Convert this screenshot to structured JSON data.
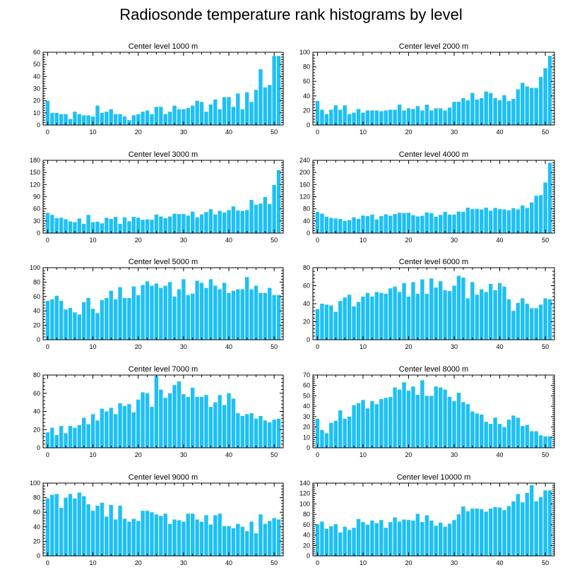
{
  "title": "Radiosonde temperature rank histograms by level",
  "colors": {
    "bar": "#1EC0F5",
    "bar_edge": "#ffffff",
    "axis": "#000000"
  },
  "chart_data": [
    {
      "type": "bar",
      "title": "Center level 1000 m",
      "xlim": [
        -1,
        52
      ],
      "ylim": [
        0,
        60
      ],
      "xticks": [
        0,
        10,
        20,
        30,
        40,
        50
      ],
      "yticks": [
        0,
        10,
        20,
        30,
        40,
        50,
        60
      ],
      "values": [
        20,
        10,
        10,
        9,
        9,
        5,
        11,
        9,
        8,
        8,
        7,
        16,
        10,
        11,
        13,
        9,
        9,
        7,
        4,
        8,
        9,
        11,
        12,
        9,
        15,
        15,
        9,
        11,
        16,
        13,
        13,
        14,
        16,
        20,
        19,
        11,
        17,
        21,
        13,
        23,
        23,
        15,
        26,
        13,
        27,
        19,
        29,
        46,
        31,
        33,
        57,
        57
      ]
    },
    {
      "type": "bar",
      "title": "Center level 2000 m",
      "xlim": [
        -1,
        52
      ],
      "ylim": [
        0,
        100
      ],
      "xticks": [
        0,
        10,
        20,
        30,
        40,
        50
      ],
      "yticks": [
        0,
        20,
        40,
        60,
        80,
        100
      ],
      "values": [
        33,
        21,
        15,
        21,
        27,
        21,
        27,
        15,
        17,
        22,
        17,
        20,
        20,
        20,
        19,
        20,
        21,
        21,
        28,
        20,
        23,
        22,
        26,
        20,
        28,
        20,
        23,
        23,
        20,
        24,
        32,
        32,
        37,
        34,
        44,
        35,
        37,
        46,
        44,
        37,
        34,
        41,
        33,
        36,
        49,
        58,
        53,
        51,
        51,
        66,
        78,
        95
      ]
    },
    {
      "type": "bar",
      "title": "Center level 3000 m",
      "xlim": [
        -1,
        52
      ],
      "ylim": [
        0,
        180
      ],
      "xticks": [
        0,
        10,
        20,
        30,
        40,
        50
      ],
      "yticks": [
        0,
        30,
        60,
        90,
        120,
        150,
        180
      ],
      "values": [
        50,
        45,
        37,
        38,
        34,
        29,
        27,
        36,
        23,
        45,
        27,
        28,
        24,
        38,
        35,
        40,
        23,
        39,
        29,
        40,
        38,
        33,
        34,
        33,
        46,
        41,
        37,
        41,
        48,
        47,
        47,
        43,
        53,
        39,
        46,
        52,
        59,
        46,
        55,
        51,
        57,
        66,
        56,
        55,
        57,
        82,
        70,
        73,
        89,
        72,
        119,
        156
      ]
    },
    {
      "type": "bar",
      "title": "Center level 4000 m",
      "xlim": [
        -1,
        52
      ],
      "ylim": [
        0,
        240
      ],
      "xticks": [
        0,
        10,
        20,
        30,
        40,
        50
      ],
      "yticks": [
        0,
        40,
        80,
        120,
        160,
        200,
        240
      ],
      "values": [
        70,
        64,
        54,
        50,
        48,
        47,
        40,
        43,
        52,
        47,
        58,
        56,
        61,
        45,
        56,
        62,
        57,
        63,
        67,
        66,
        67,
        59,
        55,
        57,
        68,
        66,
        54,
        60,
        70,
        61,
        61,
        71,
        70,
        84,
        79,
        80,
        78,
        84,
        74,
        83,
        79,
        78,
        75,
        82,
        78,
        91,
        83,
        101,
        123,
        125,
        167,
        232
      ]
    },
    {
      "type": "bar",
      "title": "Center level 5000 m",
      "xlim": [
        -1,
        52
      ],
      "ylim": [
        0,
        100
      ],
      "xticks": [
        0,
        10,
        20,
        30,
        40,
        50
      ],
      "yticks": [
        0,
        20,
        40,
        60,
        80,
        100
      ],
      "values": [
        54,
        56,
        61,
        54,
        42,
        44,
        38,
        35,
        52,
        58,
        43,
        37,
        55,
        58,
        68,
        56,
        73,
        58,
        58,
        74,
        62,
        76,
        81,
        75,
        78,
        72,
        75,
        80,
        60,
        70,
        84,
        62,
        64,
        82,
        79,
        72,
        84,
        75,
        70,
        79,
        65,
        68,
        70,
        70,
        87,
        70,
        75,
        65,
        65,
        72,
        62,
        62
      ]
    },
    {
      "type": "bar",
      "title": "Center level 6000 m",
      "xlim": [
        -1,
        52
      ],
      "ylim": [
        0,
        80
      ],
      "xticks": [
        0,
        10,
        20,
        30,
        40,
        50
      ],
      "yticks": [
        0,
        20,
        40,
        60,
        80
      ],
      "values": [
        34,
        40,
        39,
        38,
        31,
        43,
        47,
        50,
        37,
        42,
        48,
        52,
        48,
        53,
        52,
        51,
        57,
        59,
        53,
        63,
        48,
        64,
        51,
        67,
        51,
        68,
        58,
        65,
        55,
        54,
        60,
        71,
        69,
        46,
        64,
        50,
        56,
        53,
        62,
        55,
        63,
        59,
        45,
        32,
        41,
        46,
        40,
        35,
        35,
        39,
        46,
        45
      ]
    },
    {
      "type": "bar",
      "title": "Center level 7000 m",
      "xlim": [
        -1,
        52
      ],
      "ylim": [
        0,
        80
      ],
      "xticks": [
        0,
        10,
        20,
        30,
        40,
        50
      ],
      "yticks": [
        0,
        20,
        40,
        60,
        80
      ],
      "values": [
        17,
        22,
        14,
        24,
        16,
        24,
        22,
        25,
        33,
        26,
        37,
        30,
        43,
        40,
        44,
        37,
        49,
        46,
        48,
        39,
        53,
        61,
        60,
        45,
        79,
        64,
        55,
        60,
        69,
        73,
        59,
        56,
        66,
        56,
        56,
        58,
        45,
        50,
        58,
        47,
        60,
        54,
        38,
        35,
        37,
        38,
        32,
        35,
        30,
        28,
        31,
        32
      ]
    },
    {
      "type": "bar",
      "title": "Center level 8000 m",
      "xlim": [
        -1,
        52
      ],
      "ylim": [
        0,
        70
      ],
      "xticks": [
        0,
        10,
        20,
        30,
        40,
        50
      ],
      "yticks": [
        0,
        10,
        20,
        30,
        40,
        50,
        60,
        70
      ],
      "values": [
        28,
        17,
        14,
        24,
        26,
        36,
        28,
        30,
        41,
        43,
        46,
        38,
        45,
        42,
        47,
        48,
        49,
        58,
        56,
        63,
        55,
        59,
        51,
        65,
        50,
        50,
        59,
        58,
        56,
        49,
        45,
        53,
        44,
        42,
        35,
        33,
        32,
        25,
        23,
        29,
        23,
        20,
        27,
        31,
        29,
        21,
        22,
        16,
        16,
        12,
        11,
        11
      ]
    },
    {
      "type": "bar",
      "title": "Center level 9000 m",
      "xlim": [
        -1,
        52
      ],
      "ylim": [
        0,
        100
      ],
      "xticks": [
        0,
        10,
        20,
        30,
        40,
        50
      ],
      "yticks": [
        0,
        20,
        40,
        60,
        80,
        100
      ],
      "values": [
        79,
        84,
        85,
        66,
        80,
        85,
        79,
        87,
        82,
        71,
        62,
        69,
        73,
        54,
        70,
        50,
        69,
        51,
        47,
        51,
        48,
        62,
        62,
        60,
        57,
        55,
        58,
        44,
        50,
        49,
        47,
        58,
        58,
        50,
        47,
        56,
        43,
        56,
        58,
        41,
        41,
        38,
        44,
        40,
        34,
        47,
        31,
        57,
        44,
        48,
        52,
        50
      ]
    },
    {
      "type": "bar",
      "title": "Center level 10000 m",
      "xlim": [
        -1,
        52
      ],
      "ylim": [
        0,
        140
      ],
      "xticks": [
        0,
        10,
        20,
        30,
        40,
        50
      ],
      "yticks": [
        0,
        20,
        40,
        60,
        80,
        100,
        120,
        140
      ],
      "values": [
        61,
        66,
        52,
        57,
        61,
        45,
        56,
        50,
        54,
        71,
        65,
        60,
        68,
        63,
        69,
        54,
        65,
        74,
        66,
        70,
        69,
        68,
        81,
        65,
        78,
        68,
        58,
        64,
        56,
        62,
        69,
        80,
        95,
        86,
        91,
        91,
        90,
        85,
        91,
        94,
        93,
        88,
        96,
        105,
        119,
        103,
        121,
        136,
        105,
        113,
        126,
        126
      ]
    }
  ]
}
